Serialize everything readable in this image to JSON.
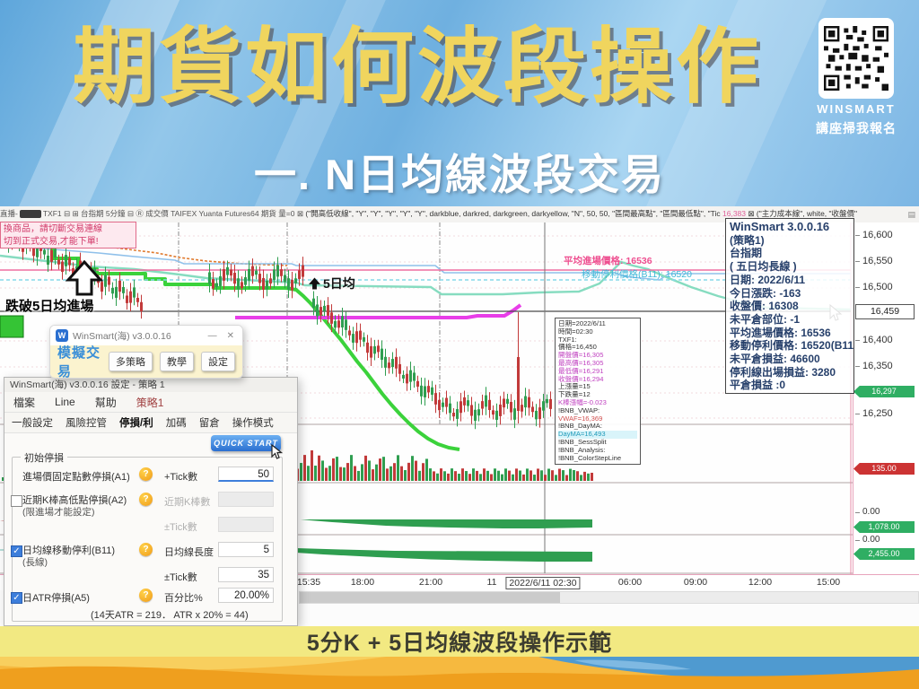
{
  "header": {
    "title": "期貨如何波段操作",
    "subtitle": "一. N日均線波段交易",
    "brand": "WINSMART",
    "brand_caption": "講座掃我報名"
  },
  "chart": {
    "toolbar": {
      "left": "直播-",
      "mid": "TXF1 ⊟ ⊞ 台指期 5分鐘 ⊟ Ⓡ 成交價 TAIFEX Yuanta Futures64 期貨 量=0 ⊠",
      "indicator1": "(\"開高低收線\", \"Y\", \"Y\", \"Y\", \"Y\", \"Y\", darkblue, darkred, darkgreen, darkyellow, \"N\", 50, 50, \"區間最高點\", \"區間最低點\", \"Tic",
      "tick": "16,383",
      "indicator2": "⊠ (\"主力成本線\", white, \"收盤價\"",
      "mini_icon": "▤"
    },
    "warning": {
      "line1": "換商品，請切斷交易連線",
      "line2": "切到正式交易,才能下單!"
    },
    "annotations": {
      "entry": "跌破5日均進場",
      "ma": "5日均",
      "avg": "平均進場價格: 16536",
      "trail": "移動停利價格(B11): 16520"
    },
    "price_labels": [
      "16,600",
      "16,550",
      "16,500",
      "16,459",
      "16,400",
      "16,350",
      "16,297",
      "16,250"
    ],
    "lower_labels": [
      "135.00",
      "0.00",
      "1,078.00",
      "0.00",
      "2,455.00"
    ],
    "time_labels": [
      "15:35",
      "18:00",
      "21:00",
      "11",
      "2022/6/11 02:30",
      "06:00",
      "09:00",
      "12:00",
      "15:00"
    ],
    "info_lines": [
      "WinSmart 3.0.0.16",
      "(策略1)",
      "台指期",
      "( 五日均長線 )",
      "日期: 2022/6/11",
      "今日漲跌: -163",
      "收盤價: 16308",
      "未平倉部位: -1",
      "平均進場價格: 16536",
      "移動停利價格: 16520(B11)",
      "未平倉損益: 46600",
      "停利線出場損益: 3280",
      "平倉損益 :0"
    ],
    "tooltip_lines": [
      "日期=2022/6/11",
      "時間=02:30",
      "TXF1:",
      "價格=16,450",
      "開盤價=16,305",
      "最高價=16,305",
      "最低價=16,291",
      "收盤價=16,294",
      "上漲量=15",
      "下跌量=12",
      "K棒漲幅=-0.023",
      "!BNB_VWAP:",
      "VWAF=16,369",
      "!BNB_DayMA:",
      "DayMA=16,493",
      "!BNB_SessSplit",
      "!BNB_Analysis:",
      "!BNB_ColorStepLine"
    ]
  },
  "sim_window": {
    "title": "WinSmart(海) v3.0.0.16",
    "minimize": "—",
    "close": "✕",
    "mode": "模擬交易",
    "buttons": [
      "多策略",
      "教學",
      "設定"
    ]
  },
  "settings": {
    "title": "WinSmart(海) v3.0.0.16 設定 - 策略 1",
    "menu": [
      "檔案",
      "Line",
      "幫助",
      "策略1"
    ],
    "tabs": [
      "一般設定",
      "風險控管",
      "停損/利",
      "加碼",
      "留倉",
      "操作模式"
    ],
    "quick": "QUICK START",
    "group": "初始停損",
    "r1_label": "進場價固定點數停損(A1)",
    "r1_field": "+Tick數",
    "r1_value": "50",
    "r2_label": "近期K棒高低點停損(A2)",
    "r2_sub": "(限進場才能設定)",
    "r2_field": "近期K棒數",
    "r2_field2": "±Tick數",
    "r3_label": "日均線移動停利(B11)",
    "r3_sub": "(長線)",
    "r3_field": "日均線長度",
    "r3_value": "5",
    "r3_field2": "±Tick數",
    "r3_value2": "35",
    "r4_label": "日ATR停損(A5)",
    "r4_field": "百分比%",
    "r4_value": "20.00%",
    "footnote": "(14天ATR = 219． ATR x 20% = 44)",
    "check1": "✓",
    "check2": "✓"
  },
  "footer": {
    "caption": "5分K + 5日均線波段操作示範"
  }
}
